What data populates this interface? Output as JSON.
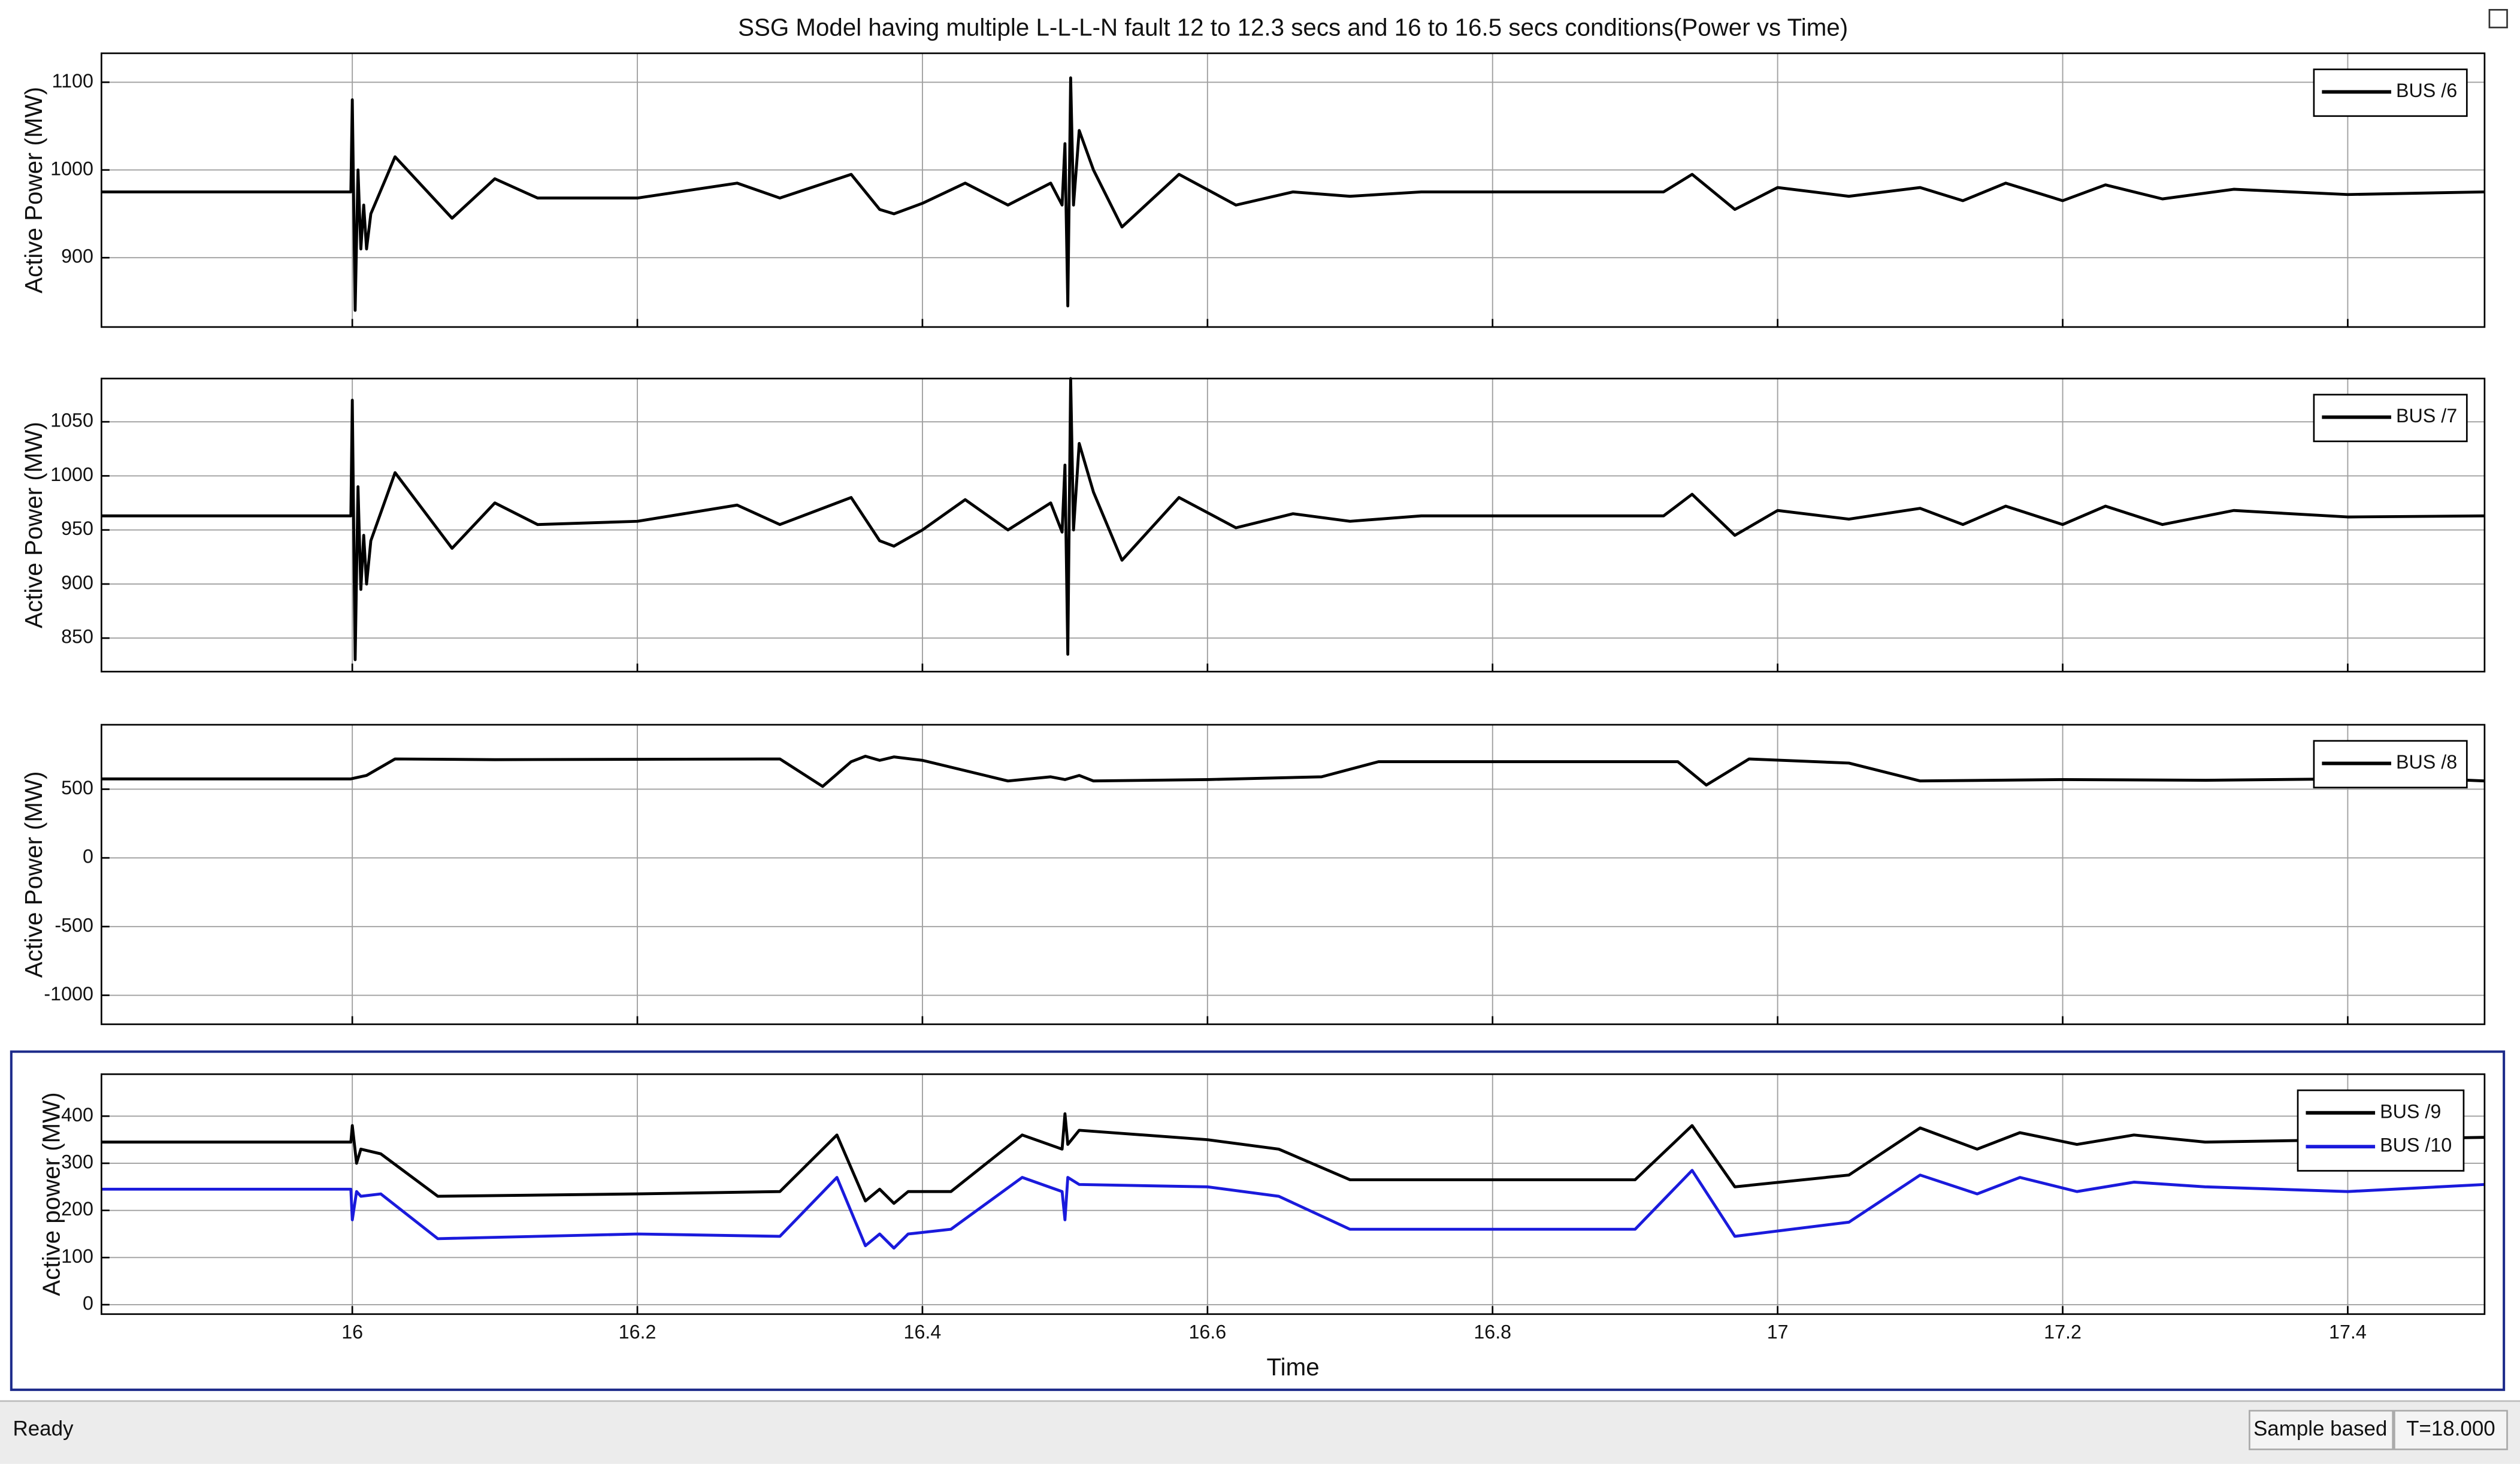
{
  "title": "SSG Model having multiple L-L-L-N fault 12 to 12.3 secs and 16 to 16.5 secs conditions(Power  vs Time)",
  "chart_data": [
    {
      "type": "line",
      "ylabel": "Active Power (MW)",
      "grid": true,
      "xlim": [
        15.824,
        17.496
      ],
      "xticks": [
        16,
        16.2,
        16.4,
        16.6,
        16.8,
        17,
        17.2,
        17.4
      ],
      "ylim": [
        821,
        1133
      ],
      "yticks": [
        900,
        1000,
        1100
      ],
      "x": [
        15.824,
        15.999,
        16.0,
        16.002,
        16.004,
        16.006,
        16.008,
        16.01,
        16.013,
        16.03,
        16.07,
        16.1,
        16.13,
        16.2,
        16.27,
        16.3,
        16.35,
        16.37,
        16.38,
        16.4,
        16.43,
        16.46,
        16.49,
        16.498,
        16.5,
        16.502,
        16.504,
        16.506,
        16.51,
        16.52,
        16.54,
        16.58,
        16.62,
        16.66,
        16.7,
        16.75,
        16.92,
        16.94,
        16.97,
        17.0,
        17.05,
        17.1,
        17.13,
        17.16,
        17.2,
        17.23,
        17.27,
        17.32,
        17.4,
        17.496
      ],
      "series": [
        {
          "name": "BUS /6",
          "color": "#000000",
          "values": [
            975,
            975,
            1080,
            840,
            1000,
            910,
            960,
            910,
            950,
            1015,
            945,
            990,
            968,
            968,
            985,
            968,
            995,
            955,
            950,
            962,
            985,
            960,
            985,
            960,
            1030,
            845,
            1105,
            960,
            1045,
            1000,
            935,
            995,
            960,
            975,
            970,
            975,
            975,
            995,
            955,
            980,
            970,
            980,
            965,
            985,
            965,
            983,
            967,
            978,
            972,
            975
          ]
        }
      ]
    },
    {
      "type": "line",
      "ylabel": "Active Power (MW)",
      "grid": true,
      "xlim": [
        15.824,
        17.496
      ],
      "xticks": [
        16,
        16.2,
        16.4,
        16.6,
        16.8,
        17,
        17.2,
        17.4
      ],
      "ylim": [
        819,
        1090
      ],
      "yticks": [
        850,
        900,
        950,
        1000,
        1050
      ],
      "x": [
        15.824,
        15.999,
        16.0,
        16.002,
        16.004,
        16.006,
        16.008,
        16.01,
        16.013,
        16.03,
        16.07,
        16.1,
        16.13,
        16.2,
        16.27,
        16.3,
        16.35,
        16.37,
        16.38,
        16.4,
        16.43,
        16.46,
        16.49,
        16.498,
        16.5,
        16.502,
        16.504,
        16.506,
        16.51,
        16.52,
        16.54,
        16.58,
        16.62,
        16.66,
        16.7,
        16.75,
        16.92,
        16.94,
        16.97,
        17.0,
        17.05,
        17.1,
        17.13,
        17.16,
        17.2,
        17.23,
        17.27,
        17.32,
        17.4,
        17.496
      ],
      "series": [
        {
          "name": "BUS /7",
          "color": "#000000",
          "values": [
            963,
            963,
            1070,
            830,
            990,
            895,
            945,
            900,
            940,
            1003,
            933,
            975,
            955,
            958,
            973,
            955,
            980,
            940,
            935,
            950,
            978,
            950,
            975,
            948,
            1010,
            835,
            1090,
            950,
            1030,
            985,
            922,
            980,
            952,
            965,
            958,
            963,
            963,
            983,
            945,
            968,
            960,
            970,
            955,
            972,
            955,
            972,
            955,
            968,
            962,
            963
          ]
        }
      ]
    },
    {
      "type": "line",
      "ylabel": "Active Power (MW)",
      "grid": true,
      "xlim": [
        15.824,
        17.496
      ],
      "xticks": [
        16,
        16.2,
        16.4,
        16.6,
        16.8,
        17,
        17.2,
        17.4
      ],
      "ylim": [
        -1211,
        969
      ],
      "yticks": [
        -1000,
        -500,
        0,
        500
      ],
      "x": [
        15.824,
        15.999,
        16.01,
        16.03,
        16.1,
        16.3,
        16.33,
        16.35,
        16.36,
        16.37,
        16.38,
        16.4,
        16.46,
        16.49,
        16.5,
        16.51,
        16.52,
        16.6,
        16.68,
        16.72,
        16.93,
        16.95,
        16.98,
        17.05,
        17.1,
        17.2,
        17.3,
        17.45,
        17.496
      ],
      "series": [
        {
          "name": "BUS /8",
          "color": "#000000",
          "values": [
            575,
            575,
            600,
            720,
            715,
            720,
            520,
            700,
            740,
            710,
            735,
            710,
            560,
            590,
            570,
            600,
            560,
            570,
            590,
            700,
            700,
            530,
            720,
            690,
            560,
            570,
            565,
            580,
            560
          ]
        }
      ]
    },
    {
      "type": "line",
      "ylabel": "Active power (MW)",
      "xlabel": "Time",
      "grid": true,
      "xlim": [
        15.824,
        17.496
      ],
      "xticks": [
        16,
        16.2,
        16.4,
        16.6,
        16.8,
        17,
        17.2,
        17.4
      ],
      "ylim": [
        -20,
        489
      ],
      "yticks": [
        0,
        100,
        200,
        300,
        400
      ],
      "x": [
        15.824,
        15.999,
        16.0,
        16.003,
        16.006,
        16.02,
        16.06,
        16.2,
        16.3,
        16.34,
        16.36,
        16.37,
        16.38,
        16.39,
        16.42,
        16.47,
        16.498,
        16.5,
        16.502,
        16.51,
        16.6,
        16.65,
        16.7,
        16.9,
        16.94,
        16.97,
        17.05,
        17.1,
        17.14,
        17.17,
        17.21,
        17.25,
        17.3,
        17.4,
        17.496
      ],
      "series": [
        {
          "name": "BUS /9",
          "color": "#000000",
          "values": [
            345,
            345,
            380,
            300,
            330,
            320,
            230,
            235,
            240,
            360,
            220,
            245,
            215,
            240,
            240,
            360,
            330,
            405,
            340,
            370,
            350,
            330,
            265,
            265,
            380,
            250,
            275,
            375,
            330,
            365,
            340,
            360,
            345,
            350,
            355
          ]
        },
        {
          "name": "BUS /10",
          "color": "#1a1adc",
          "values": [
            245,
            245,
            180,
            240,
            230,
            235,
            140,
            150,
            145,
            270,
            125,
            150,
            120,
            150,
            160,
            270,
            240,
            180,
            270,
            255,
            250,
            230,
            160,
            160,
            285,
            145,
            175,
            275,
            235,
            270,
            240,
            260,
            250,
            240,
            255
          ]
        }
      ]
    }
  ],
  "status_bar": {
    "state": "Ready",
    "mode": "Sample based",
    "time": "T=18.000"
  }
}
